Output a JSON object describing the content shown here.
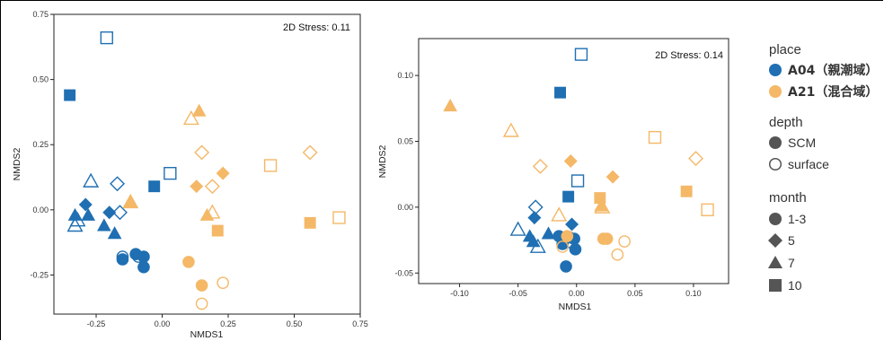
{
  "colors": {
    "A04": "#1f6fb2",
    "A21": "#f4b867"
  },
  "chart_data": [
    {
      "type": "scatter",
      "stress_label": "2D Stress: 0.11",
      "xlabel": "NMDS1",
      "ylabel": "NMDS2",
      "xlim": [
        -0.41,
        0.75
      ],
      "ylim": [
        -0.4,
        0.75
      ],
      "xticks": [
        -0.25,
        0.0,
        0.25,
        0.5,
        0.75
      ],
      "xtick_labels": [
        "-0.25",
        "0.00",
        "0.25",
        "0.50",
        "0.75"
      ],
      "yticks": [
        -0.25,
        0.0,
        0.25,
        0.5,
        0.75
      ],
      "ytick_labels": [
        "-0.25",
        "0.00",
        "0.25",
        "0.50",
        "0.75"
      ],
      "grid": false,
      "points": [
        {
          "x": -0.35,
          "y": 0.44,
          "place": "A04",
          "depth": "SCM",
          "month": "10"
        },
        {
          "x": -0.21,
          "y": 0.66,
          "place": "A04",
          "depth": "surface",
          "month": "10"
        },
        {
          "x": -0.03,
          "y": 0.09,
          "place": "A04",
          "depth": "SCM",
          "month": "10"
        },
        {
          "x": 0.03,
          "y": 0.14,
          "place": "A04",
          "depth": "surface",
          "month": "10"
        },
        {
          "x": -0.27,
          "y": 0.11,
          "place": "A04",
          "depth": "surface",
          "month": "7"
        },
        {
          "x": -0.33,
          "y": -0.02,
          "place": "A04",
          "depth": "SCM",
          "month": "7"
        },
        {
          "x": -0.28,
          "y": -0.02,
          "place": "A04",
          "depth": "SCM",
          "month": "7"
        },
        {
          "x": -0.22,
          "y": -0.06,
          "place": "A04",
          "depth": "SCM",
          "month": "7"
        },
        {
          "x": -0.33,
          "y": -0.06,
          "place": "A04",
          "depth": "surface",
          "month": "7"
        },
        {
          "x": -0.32,
          "y": -0.04,
          "place": "A04",
          "depth": "surface",
          "month": "7"
        },
        {
          "x": -0.18,
          "y": -0.09,
          "place": "A04",
          "depth": "SCM",
          "month": "7"
        },
        {
          "x": -0.29,
          "y": 0.02,
          "place": "A04",
          "depth": "SCM",
          "month": "5"
        },
        {
          "x": -0.2,
          "y": -0.01,
          "place": "A04",
          "depth": "SCM",
          "month": "5"
        },
        {
          "x": -0.17,
          "y": 0.1,
          "place": "A04",
          "depth": "surface",
          "month": "5"
        },
        {
          "x": -0.16,
          "y": -0.01,
          "place": "A04",
          "depth": "surface",
          "month": "5"
        },
        {
          "x": -0.15,
          "y": -0.19,
          "place": "A04",
          "depth": "SCM",
          "month": "1-3"
        },
        {
          "x": -0.1,
          "y": -0.17,
          "place": "A04",
          "depth": "SCM",
          "month": "1-3"
        },
        {
          "x": -0.07,
          "y": -0.18,
          "place": "A04",
          "depth": "SCM",
          "month": "1-3"
        },
        {
          "x": -0.07,
          "y": -0.22,
          "place": "A04",
          "depth": "SCM",
          "month": "1-3"
        },
        {
          "x": -0.15,
          "y": -0.18,
          "place": "A04",
          "depth": "surface",
          "month": "1-3"
        },
        {
          "x": -0.09,
          "y": -0.18,
          "place": "A04",
          "depth": "surface",
          "month": "1-3"
        },
        {
          "x": 0.14,
          "y": 0.38,
          "place": "A21",
          "depth": "SCM",
          "month": "7"
        },
        {
          "x": 0.11,
          "y": 0.35,
          "place": "A21",
          "depth": "surface",
          "month": "7"
        },
        {
          "x": -0.12,
          "y": 0.03,
          "place": "A21",
          "depth": "SCM",
          "month": "7"
        },
        {
          "x": -0.12,
          "y": 0.03,
          "place": "A21",
          "depth": "surface",
          "month": "7"
        },
        {
          "x": 0.17,
          "y": -0.02,
          "place": "A21",
          "depth": "SCM",
          "month": "7"
        },
        {
          "x": 0.19,
          "y": -0.01,
          "place": "A21",
          "depth": "surface",
          "month": "7"
        },
        {
          "x": 0.15,
          "y": 0.22,
          "place": "A21",
          "depth": "surface",
          "month": "5"
        },
        {
          "x": 0.23,
          "y": 0.14,
          "place": "A21",
          "depth": "SCM",
          "month": "5"
        },
        {
          "x": 0.13,
          "y": 0.09,
          "place": "A21",
          "depth": "SCM",
          "month": "5"
        },
        {
          "x": 0.19,
          "y": 0.09,
          "place": "A21",
          "depth": "surface",
          "month": "5"
        },
        {
          "x": 0.56,
          "y": 0.22,
          "place": "A21",
          "depth": "surface",
          "month": "5"
        },
        {
          "x": 0.41,
          "y": 0.17,
          "place": "A21",
          "depth": "surface",
          "month": "10"
        },
        {
          "x": 0.56,
          "y": -0.05,
          "place": "A21",
          "depth": "SCM",
          "month": "10"
        },
        {
          "x": 0.67,
          "y": -0.03,
          "place": "A21",
          "depth": "surface",
          "month": "10"
        },
        {
          "x": 0.21,
          "y": -0.08,
          "place": "A21",
          "depth": "SCM",
          "month": "10"
        },
        {
          "x": 0.1,
          "y": -0.2,
          "place": "A21",
          "depth": "SCM",
          "month": "1-3"
        },
        {
          "x": 0.15,
          "y": -0.29,
          "place": "A21",
          "depth": "SCM",
          "month": "1-3"
        },
        {
          "x": 0.23,
          "y": -0.28,
          "place": "A21",
          "depth": "surface",
          "month": "1-3"
        },
        {
          "x": 0.15,
          "y": -0.36,
          "place": "A21",
          "depth": "surface",
          "month": "1-3"
        }
      ]
    },
    {
      "type": "scatter",
      "stress_label": "2D Stress: 0.14",
      "xlabel": "NMDS1",
      "ylabel": "NMDS2",
      "xlim": [
        -0.135,
        0.13
      ],
      "ylim": [
        -0.058,
        0.128
      ],
      "xticks": [
        -0.1,
        -0.05,
        0.0,
        0.05,
        0.1
      ],
      "xtick_labels": [
        "-0.10",
        "-0.05",
        "0.00",
        "0.05",
        "0.10"
      ],
      "yticks": [
        -0.05,
        0.0,
        0.05,
        0.1
      ],
      "ytick_labels": [
        "-0.05",
        "0.00",
        "0.05",
        "0.10"
      ],
      "grid": false,
      "points": [
        {
          "x": 0.004,
          "y": 0.116,
          "place": "A04",
          "depth": "surface",
          "month": "10"
        },
        {
          "x": -0.014,
          "y": 0.087,
          "place": "A04",
          "depth": "SCM",
          "month": "10"
        },
        {
          "x": -0.007,
          "y": 0.008,
          "place": "A04",
          "depth": "SCM",
          "month": "10"
        },
        {
          "x": 0.001,
          "y": 0.02,
          "place": "A04",
          "depth": "surface",
          "month": "10"
        },
        {
          "x": -0.035,
          "y": 0.0,
          "place": "A04",
          "depth": "surface",
          "month": "5"
        },
        {
          "x": -0.036,
          "y": -0.008,
          "place": "A04",
          "depth": "SCM",
          "month": "5"
        },
        {
          "x": -0.004,
          "y": -0.013,
          "place": "A04",
          "depth": "SCM",
          "month": "5"
        },
        {
          "x": -0.05,
          "y": -0.017,
          "place": "A04",
          "depth": "surface",
          "month": "7"
        },
        {
          "x": -0.04,
          "y": -0.022,
          "place": "A04",
          "depth": "SCM",
          "month": "7"
        },
        {
          "x": -0.037,
          "y": -0.026,
          "place": "A04",
          "depth": "SCM",
          "month": "7"
        },
        {
          "x": -0.033,
          "y": -0.03,
          "place": "A04",
          "depth": "surface",
          "month": "7"
        },
        {
          "x": -0.024,
          "y": -0.02,
          "place": "A04",
          "depth": "SCM",
          "month": "7"
        },
        {
          "x": -0.015,
          "y": -0.022,
          "place": "A04",
          "depth": "SCM",
          "month": "1-3"
        },
        {
          "x": -0.012,
          "y": -0.028,
          "place": "A04",
          "depth": "SCM",
          "month": "1-3"
        },
        {
          "x": -0.006,
          "y": -0.023,
          "place": "A04",
          "depth": "SCM",
          "month": "1-3"
        },
        {
          "x": -0.002,
          "y": -0.024,
          "place": "A04",
          "depth": "SCM",
          "month": "1-3"
        },
        {
          "x": -0.001,
          "y": -0.032,
          "place": "A04",
          "depth": "SCM",
          "month": "1-3"
        },
        {
          "x": -0.009,
          "y": -0.045,
          "place": "A04",
          "depth": "SCM",
          "month": "1-3"
        },
        {
          "x": -0.004,
          "y": -0.027,
          "place": "A04",
          "depth": "surface",
          "month": "1-3"
        },
        {
          "x": -0.009,
          "y": -0.023,
          "place": "A04",
          "depth": "surface",
          "month": "1-3"
        },
        {
          "x": -0.108,
          "y": 0.077,
          "place": "A21",
          "depth": "SCM",
          "month": "7"
        },
        {
          "x": -0.056,
          "y": 0.058,
          "place": "A21",
          "depth": "surface",
          "month": "7"
        },
        {
          "x": 0.021,
          "y": 0.001,
          "place": "A21",
          "depth": "SCM",
          "month": "7"
        },
        {
          "x": 0.022,
          "y": 0.0,
          "place": "A21",
          "depth": "surface",
          "month": "7"
        },
        {
          "x": -0.015,
          "y": -0.006,
          "place": "A21",
          "depth": "surface",
          "month": "7"
        },
        {
          "x": -0.031,
          "y": 0.031,
          "place": "A21",
          "depth": "surface",
          "month": "5"
        },
        {
          "x": -0.005,
          "y": 0.035,
          "place": "A21",
          "depth": "SCM",
          "month": "5"
        },
        {
          "x": 0.031,
          "y": 0.023,
          "place": "A21",
          "depth": "SCM",
          "month": "5"
        },
        {
          "x": 0.102,
          "y": 0.037,
          "place": "A21",
          "depth": "surface",
          "month": "5"
        },
        {
          "x": 0.067,
          "y": 0.053,
          "place": "A21",
          "depth": "surface",
          "month": "10"
        },
        {
          "x": 0.094,
          "y": 0.012,
          "place": "A21",
          "depth": "SCM",
          "month": "10"
        },
        {
          "x": 0.112,
          "y": -0.002,
          "place": "A21",
          "depth": "surface",
          "month": "10"
        },
        {
          "x": 0.02,
          "y": 0.007,
          "place": "A21",
          "depth": "SCM",
          "month": "10"
        },
        {
          "x": -0.008,
          "y": -0.022,
          "place": "A21",
          "depth": "SCM",
          "month": "1-3"
        },
        {
          "x": 0.023,
          "y": -0.024,
          "place": "A21",
          "depth": "SCM",
          "month": "1-3"
        },
        {
          "x": 0.026,
          "y": -0.024,
          "place": "A21",
          "depth": "SCM",
          "month": "1-3"
        },
        {
          "x": -0.012,
          "y": -0.03,
          "place": "A21",
          "depth": "surface",
          "month": "1-3"
        },
        {
          "x": 0.041,
          "y": -0.026,
          "place": "A21",
          "depth": "surface",
          "month": "1-3"
        },
        {
          "x": 0.035,
          "y": -0.036,
          "place": "A21",
          "depth": "surface",
          "month": "1-3"
        }
      ]
    }
  ],
  "legend": {
    "place": {
      "title": "place",
      "items": [
        {
          "key": "A04",
          "label": "A04（親潮域）"
        },
        {
          "key": "A21",
          "label": "A21（混合域）"
        }
      ]
    },
    "depth": {
      "title": "depth",
      "items": [
        {
          "key": "SCM",
          "label": "SCM"
        },
        {
          "key": "surface",
          "label": "surface"
        }
      ]
    },
    "month": {
      "title": "month",
      "items": [
        {
          "key": "1-3",
          "label": "1-3"
        },
        {
          "key": "5",
          "label": "5"
        },
        {
          "key": "7",
          "label": "7"
        },
        {
          "key": "10",
          "label": "10"
        }
      ]
    }
  }
}
